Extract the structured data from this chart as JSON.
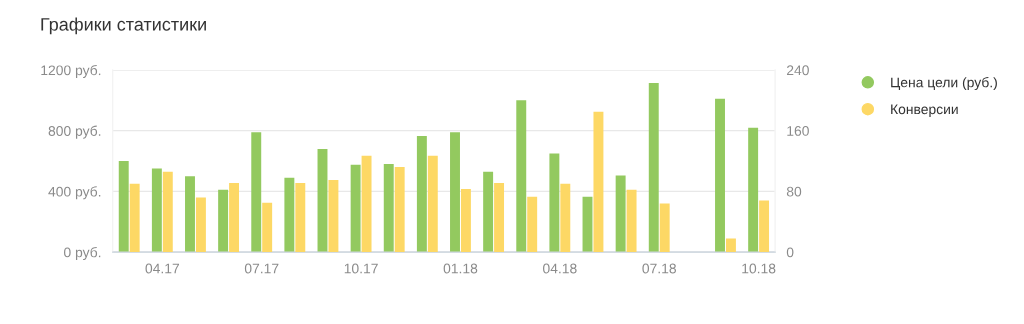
{
  "chart_data": {
    "type": "bar",
    "title": "Графики статистики",
    "categories": [
      null,
      "04.17",
      null,
      null,
      "07.17",
      null,
      null,
      "10.17",
      null,
      null,
      "01.18",
      null,
      null,
      "04.18",
      null,
      null,
      "07.18",
      null,
      null,
      "10.18"
    ],
    "series": [
      {
        "name": "Цена цели (руб.)",
        "color": "#93c95f",
        "values": [
          600,
          550,
          500,
          410,
          790,
          490,
          680,
          575,
          580,
          765,
          790,
          530,
          1000,
          650,
          365,
          505,
          1115,
          null,
          1010,
          820
        ]
      },
      {
        "name": "Конверсии",
        "color": "#fdd865",
        "axis": "y2",
        "values": [
          90,
          106,
          72,
          91,
          65,
          91,
          95,
          127,
          112,
          127,
          83,
          91,
          73,
          90,
          185,
          82,
          64,
          null,
          18,
          68
        ]
      }
    ],
    "ylim": [
      0,
      1200
    ],
    "yticks": [
      {
        "value": 0,
        "label": "0 руб."
      },
      {
        "value": 400,
        "label": "400 руб."
      },
      {
        "value": 800,
        "label": "800 руб."
      },
      {
        "value": 1200,
        "label": "1200 руб."
      }
    ],
    "y2lim": [
      0,
      240
    ],
    "y2ticks": [
      0,
      80,
      160,
      240
    ],
    "grid": "y",
    "legend": "top right",
    "marker": "circle"
  }
}
